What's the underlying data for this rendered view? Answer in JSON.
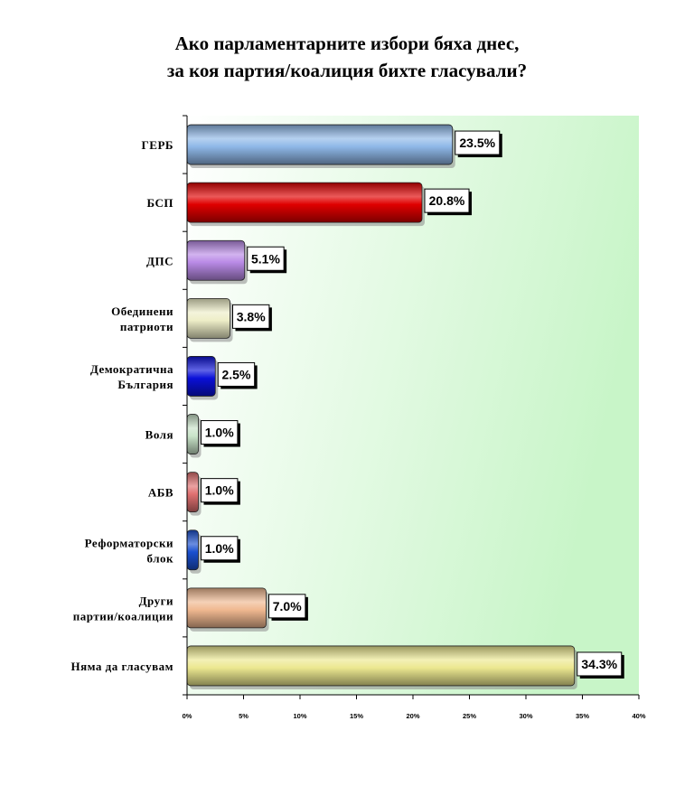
{
  "chart_data": {
    "type": "bar",
    "orientation": "horizontal",
    "title_lines": [
      "Ако парламентарните избори бяха днес,",
      "за коя партия/коалиция бихте гласували?"
    ],
    "categories": [
      [
        "ГЕРБ"
      ],
      [
        "БСП"
      ],
      [
        "ДПС"
      ],
      [
        "Обединени",
        "патриоти"
      ],
      [
        "Демократична",
        "България"
      ],
      [
        "Воля"
      ],
      [
        "АБВ"
      ],
      [
        "Реформаторски",
        "блок"
      ],
      [
        "Други",
        "партии/коалиции"
      ],
      [
        "Няма да гласувам"
      ]
    ],
    "values": [
      23.5,
      20.8,
      5.1,
      3.8,
      2.5,
      1.0,
      1.0,
      1.0,
      7.0,
      34.3
    ],
    "value_labels": [
      "23.5%",
      "20.8%",
      "5.1%",
      "3.8%",
      "2.5%",
      "1.0%",
      "1.0%",
      "1.0%",
      "7.0%",
      "34.3%"
    ],
    "bar_colors": [
      "#8fb8e8",
      "#e00000",
      "#b98ae6",
      "#eeeec8",
      "#0a10d8",
      "#c9e4c9",
      "#e07070",
      "#1a50d0",
      "#f0b890",
      "#ece890"
    ],
    "xlim": [
      0,
      40
    ],
    "xticks": [
      0,
      5,
      10,
      15,
      20,
      25,
      30,
      35,
      40
    ],
    "xtick_labels": [
      "0%",
      "5%",
      "10%",
      "15%",
      "20%",
      "25%",
      "30%",
      "35%",
      "40%"
    ],
    "plot_background": "gradient white to light green",
    "grid": false,
    "legend": "none"
  }
}
